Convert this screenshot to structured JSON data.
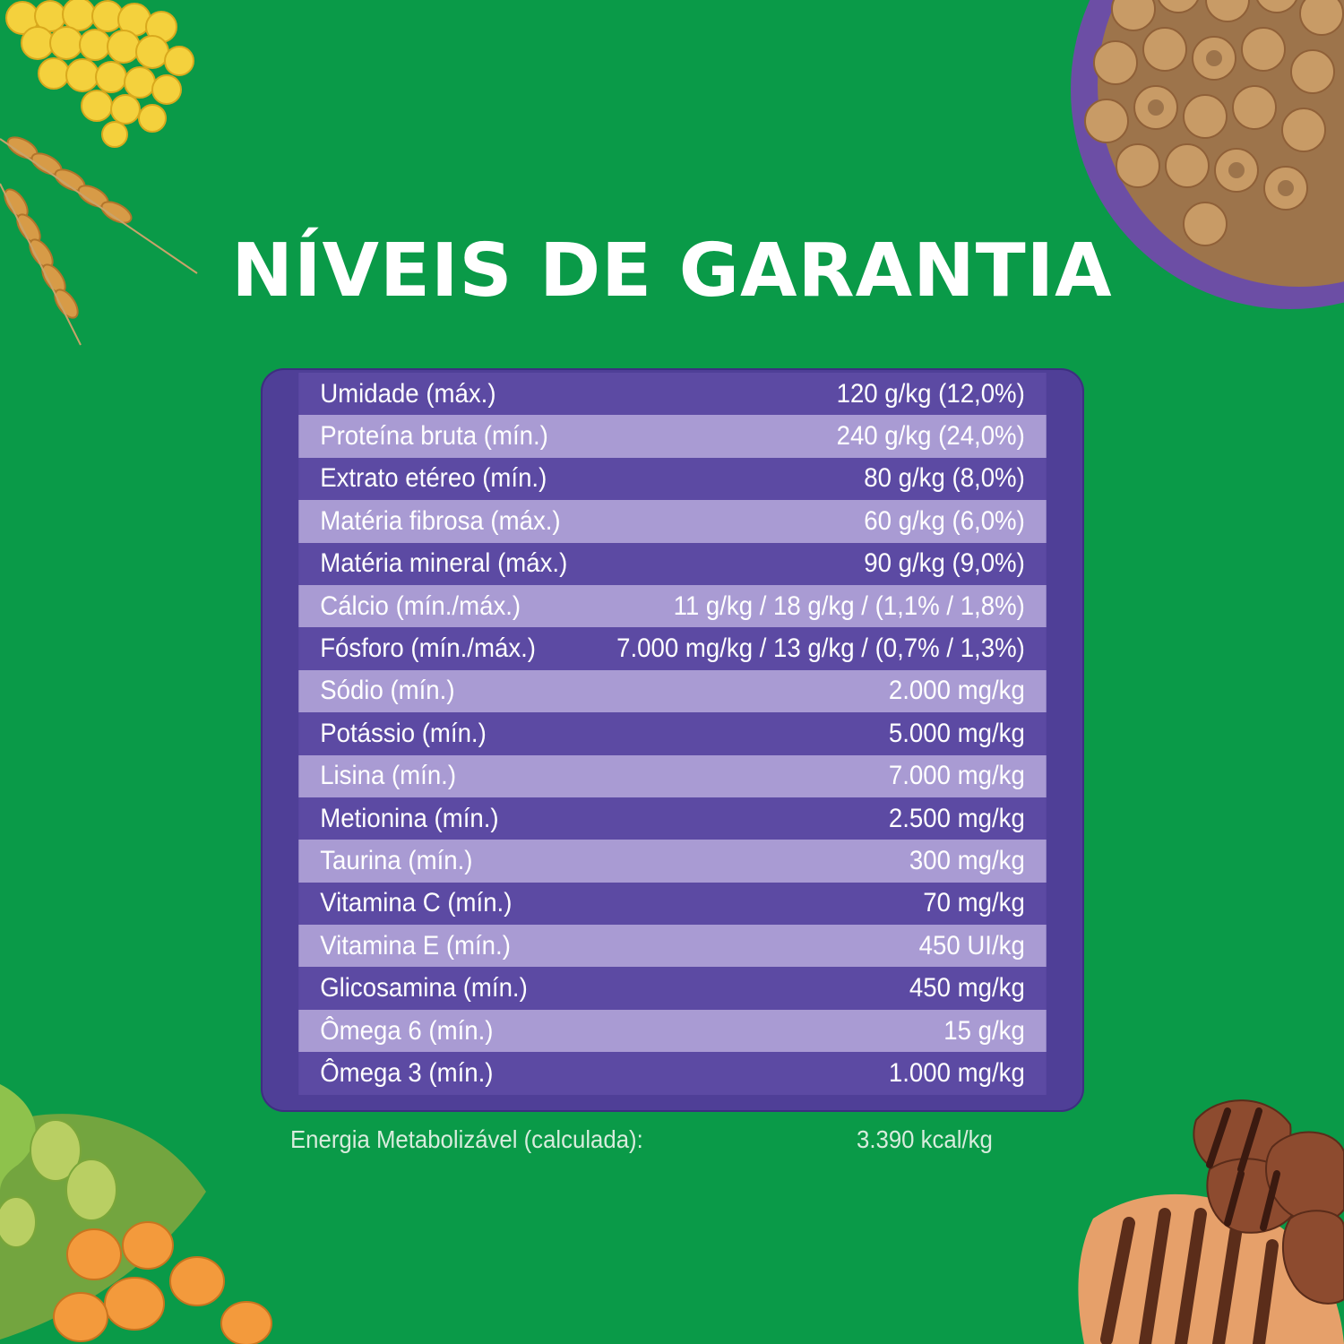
{
  "title": "NÍVEIS DE GARANTIA",
  "rows": [
    {
      "label": "Umidade (máx.)",
      "value": "120 g/kg (12,0%)"
    },
    {
      "label": "Proteína bruta (mín.)",
      "value": "240 g/kg (24,0%)"
    },
    {
      "label": "Extrato etéreo (mín.)",
      "value": "80 g/kg (8,0%)"
    },
    {
      "label": "Matéria fibrosa (máx.)",
      "value": "60 g/kg (6,0%)"
    },
    {
      "label": "Matéria mineral (máx.)",
      "value": "90 g/kg (9,0%)"
    },
    {
      "label": "Cálcio (mín./máx.)",
      "value": "11 g/kg / 18 g/kg / (1,1% / 1,8%)"
    },
    {
      "label": "Fósforo (mín./máx.)",
      "value": "7.000 mg/kg / 13 g/kg / (0,7% / 1,3%)"
    },
    {
      "label": "Sódio (mín.)",
      "value": "2.000 mg/kg"
    },
    {
      "label": "Potássio (mín.)",
      "value": "5.000 mg/kg"
    },
    {
      "label": "Lisina (mín.)",
      "value": "7.000 mg/kg"
    },
    {
      "label": "Metionina (mín.)",
      "value": "2.500 mg/kg"
    },
    {
      "label": "Taurina (mín.)",
      "value": "300 mg/kg"
    },
    {
      "label": "Vitamina C (mín.)",
      "value": "70 mg/kg"
    },
    {
      "label": "Vitamina E (mín.)",
      "value": "450 UI/kg"
    },
    {
      "label": "Glicosamina (mín.)",
      "value": "450 mg/kg"
    },
    {
      "label": "Ômega 6 (mín.)",
      "value": "15 g/kg"
    },
    {
      "label": "Ômega 3 (mín.)",
      "value": "1.000 mg/kg"
    }
  ],
  "energy": {
    "label": "Energia Metabolizável (calculada):",
    "value": "3.390 kcal/kg"
  },
  "colors": {
    "background": "#0a9a48",
    "table_dark": "#5c4aa3",
    "table_light": "#a99bd3",
    "table_border": "#4f3f97"
  },
  "decorations": {
    "top_left": "corn-and-wheat-image",
    "top_right": "kibble-bowl-image",
    "bottom_left": "soybean-image",
    "bottom_right": "grilled-meat-image"
  }
}
